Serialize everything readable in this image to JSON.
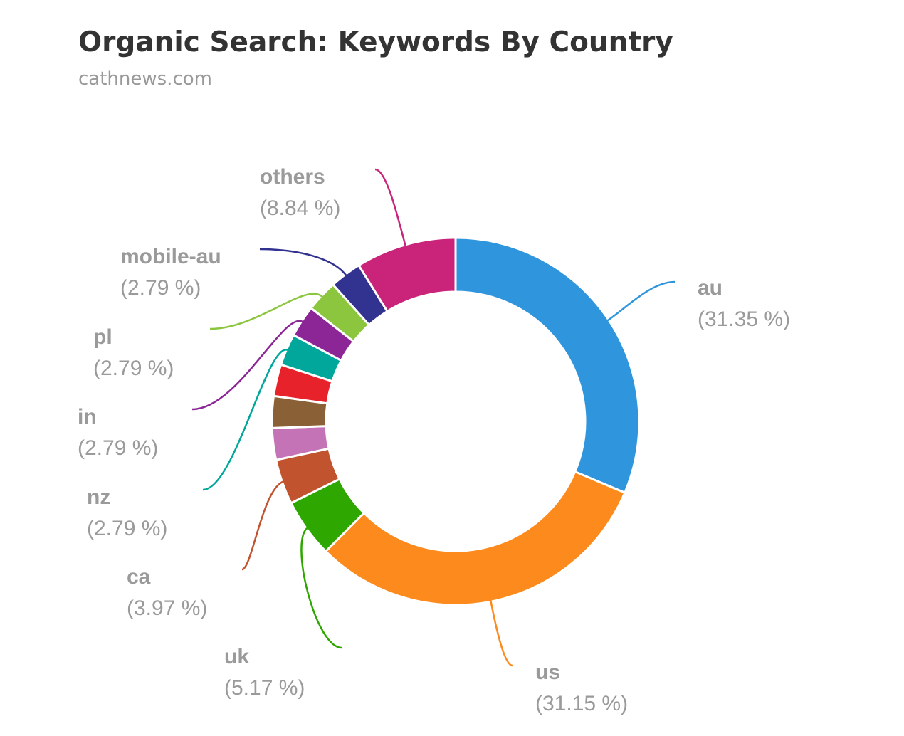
{
  "chart_data": {
    "type": "donut",
    "title": "Organic Search: Keywords By Country",
    "subtitle": "cathnews.com",
    "categories": [
      "au",
      "us",
      "uk",
      "ca",
      null,
      null,
      null,
      "nz",
      "in",
      "pl",
      "mobile-au",
      "others"
    ],
    "values": [
      31.35,
      31.15,
      5.17,
      3.97,
      2.79,
      2.79,
      2.79,
      2.79,
      2.79,
      2.79,
      2.79,
      8.84
    ],
    "value_labels": [
      "(31.35 %)",
      "(31.15 %)",
      "(5.17 %)",
      "(3.97 %)",
      null,
      null,
      null,
      "(2.79 %)",
      "(2.79 %)",
      "(2.79 %)",
      "(2.79 %)",
      "(8.84 %)"
    ],
    "colors": [
      "#2f95dc",
      "#fd8a1d",
      "#2ea800",
      "#c1542f",
      "#c373b6",
      "#8a6137",
      "#e8222b",
      "#00a79a",
      "#8c2595",
      "#8cc63f",
      "#323291",
      "#c9247a"
    ]
  }
}
